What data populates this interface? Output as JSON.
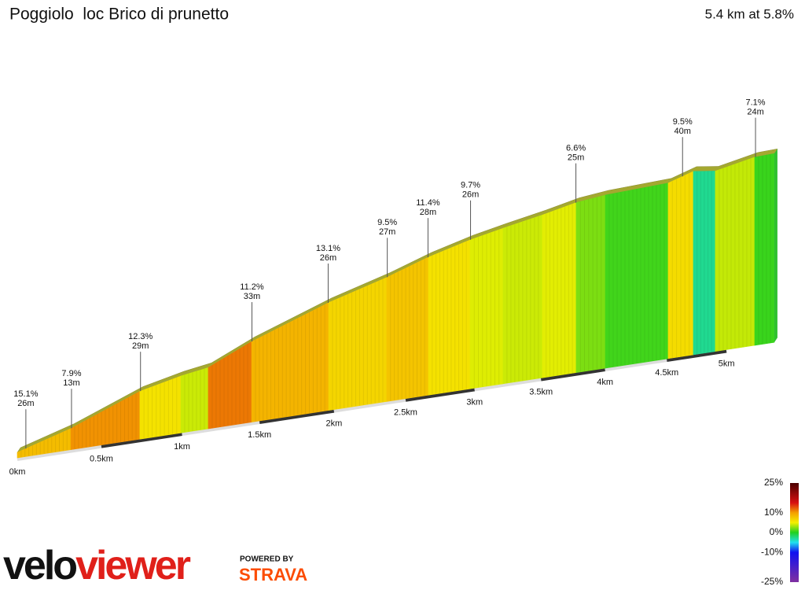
{
  "chart_data": {
    "type": "elevation-profile",
    "title": "Poggiolo  loc Brico di prunetto",
    "subtitle": "5.4 km at 5.8%",
    "x": [
      0,
      0.316,
      0.736,
      0.992,
      1.167,
      1.448,
      1.963,
      2.366,
      2.663,
      2.967,
      3.212,
      3.51,
      3.772,
      4.002,
      4.511,
      4.72,
      4.905,
      5.243,
      5.414
    ],
    "series": [
      {
        "values": [
          9,
          35,
          79,
          94,
          101,
          133,
          178,
          205,
          228,
          246,
          257,
          269,
          281,
          286,
          290,
          303,
          298,
          311,
          312
        ]
      }
    ],
    "xticks": [
      {
        "value": 0,
        "label": "0km"
      },
      {
        "value": 0.5,
        "label": "0.5km"
      },
      {
        "value": 1,
        "label": "1km"
      },
      {
        "value": 1.5,
        "label": "1.5km"
      },
      {
        "value": 2,
        "label": "2km"
      },
      {
        "value": 2.5,
        "label": "2.5km"
      },
      {
        "value": 3,
        "label": "3km"
      },
      {
        "value": 3.5,
        "label": "3.5km"
      },
      {
        "value": 4,
        "label": "4km"
      },
      {
        "value": 4.5,
        "label": "4.5km"
      },
      {
        "value": 5,
        "label": "5km"
      }
    ],
    "climbs": {
      "x": [
        0.05,
        0.32,
        0.74,
        1.45,
        1.96,
        2.37,
        2.66,
        2.97,
        3.77,
        4.63,
        5.25
      ],
      "values": [
        15.1,
        7.9,
        12.3,
        11.2,
        13.1,
        9.5,
        11.4,
        9.7,
        6.6,
        9.5,
        7.1
      ],
      "value_labels": [
        "15.1%",
        "7.9%",
        "12.3%",
        "11.2%",
        "13.1%",
        "9.5%",
        "11.4%",
        "9.7%",
        "6.6%",
        "9.5%",
        "7.1%"
      ],
      "lengths": [
        26,
        13,
        29,
        33,
        26,
        27,
        28,
        26,
        25,
        40,
        24
      ],
      "length_labels": [
        "26m",
        "13m",
        "29m",
        "33m",
        "26m",
        "27m",
        "28m",
        "26m",
        "25m",
        "40m",
        "24m"
      ]
    },
    "color_scale": [
      {
        "value": 25,
        "label": "25%",
        "color": "#4a0000"
      },
      {
        "value": 15,
        "label": null,
        "color": "#d81010"
      },
      {
        "value": 10,
        "label": "10%",
        "color": "#f4a000"
      },
      {
        "value": 5,
        "label": null,
        "color": "#f4f000"
      },
      {
        "value": 0,
        "label": "0%",
        "color": "#20d020"
      },
      {
        "value": -5,
        "label": null,
        "color": "#20e0f0"
      },
      {
        "value": -10,
        "label": "-10%",
        "color": "#1010f0"
      },
      {
        "value": -25,
        "label": "-25%",
        "color": "#8030a0"
      }
    ],
    "brand": {
      "name_left": "velo",
      "name_right": "viewer",
      "powered": "POWERED BY",
      "partner": "STRAVA"
    }
  }
}
